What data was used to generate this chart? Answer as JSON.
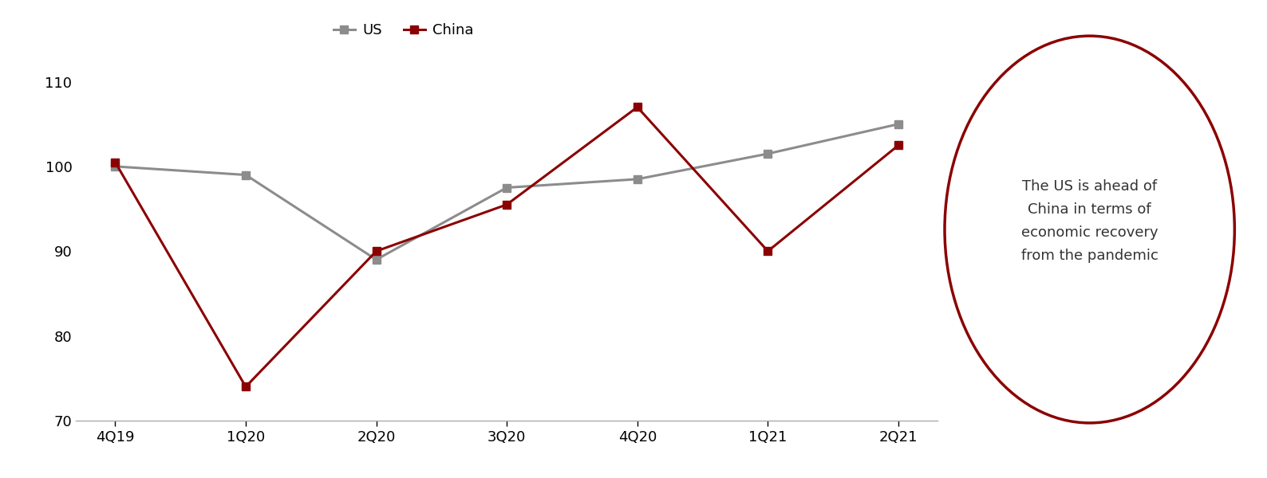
{
  "categories": [
    "4Q19",
    "1Q20",
    "2Q20",
    "3Q20",
    "4Q20",
    "1Q21",
    "2Q21"
  ],
  "us_values": [
    100,
    99,
    89,
    97.5,
    98.5,
    101.5,
    105
  ],
  "china_values": [
    100.5,
    74,
    90,
    95.5,
    107,
    90,
    102.5
  ],
  "us_color": "#8c8c8c",
  "china_color": "#8b0000",
  "us_label": "US",
  "china_label": "China",
  "ylim": [
    70,
    114
  ],
  "yticks": [
    70,
    80,
    90,
    100,
    110
  ],
  "background_color": "#ffffff",
  "annotation_text": "The US is ahead of\nChina in terms of\neconomic recovery\nfrom the pandemic",
  "annotation_color": "#8b0000",
  "line_width": 2.2,
  "marker_size": 7,
  "marker_style": "s"
}
